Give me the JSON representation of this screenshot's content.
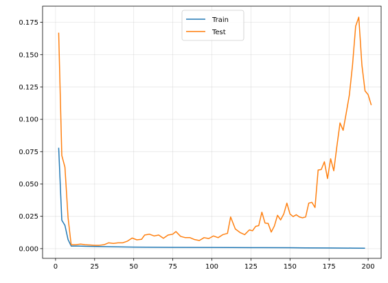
{
  "chart_data": {
    "type": "line",
    "grid": true,
    "legend_placement": "top-center",
    "xlim": [
      -8.3,
      208.3
    ],
    "ylim": [
      -0.0075,
      0.1875
    ],
    "x_ticks": [
      0,
      25,
      50,
      75,
      100,
      125,
      150,
      175,
      200
    ],
    "y_ticks": [
      0.0,
      0.025,
      0.05,
      0.075,
      0.1,
      0.125,
      0.15,
      0.175
    ],
    "x_tick_labels": [
      "0",
      "25",
      "50",
      "75",
      "100",
      "125",
      "150",
      "175",
      "200"
    ],
    "y_tick_labels": [
      "0.000",
      "0.025",
      "0.050",
      "0.075",
      "0.100",
      "0.125",
      "0.150",
      "0.175"
    ],
    "series": [
      {
        "name": "Train",
        "color": "#1f77b4",
        "points": [
          [
            2,
            0.078
          ],
          [
            4,
            0.022
          ],
          [
            6,
            0.018
          ],
          [
            8,
            0.007
          ],
          [
            10,
            0.002
          ],
          [
            15,
            0.002
          ],
          [
            20,
            0.0018
          ],
          [
            30,
            0.0016
          ],
          [
            40,
            0.0014
          ],
          [
            50,
            0.0012
          ],
          [
            75,
            0.001
          ],
          [
            100,
            0.0009
          ],
          [
            125,
            0.0008
          ],
          [
            150,
            0.0007
          ],
          [
            160,
            0.0006
          ],
          [
            175,
            0.0005
          ],
          [
            190,
            0.0004
          ],
          [
            198,
            0.0003
          ]
        ]
      },
      {
        "name": "Test",
        "color": "#ff7f0e",
        "points": [
          [
            2,
            0.167
          ],
          [
            4,
            0.072
          ],
          [
            6,
            0.063
          ],
          [
            8,
            0.024
          ],
          [
            10,
            0.003
          ],
          [
            13,
            0.003
          ],
          [
            16,
            0.0035
          ],
          [
            19,
            0.003
          ],
          [
            22,
            0.0028
          ],
          [
            25,
            0.0026
          ],
          [
            28,
            0.0026
          ],
          [
            31,
            0.003
          ],
          [
            34,
            0.0045
          ],
          [
            37,
            0.004
          ],
          [
            40,
            0.0045
          ],
          [
            43,
            0.0045
          ],
          [
            46,
            0.0058
          ],
          [
            49,
            0.0082
          ],
          [
            52,
            0.0068
          ],
          [
            55,
            0.0072
          ],
          [
            57,
            0.0105
          ],
          [
            60,
            0.0112
          ],
          [
            63,
            0.0098
          ],
          [
            66,
            0.0105
          ],
          [
            69,
            0.008
          ],
          [
            72,
            0.0105
          ],
          [
            75,
            0.0112
          ],
          [
            77,
            0.0132
          ],
          [
            80,
            0.0095
          ],
          [
            83,
            0.0085
          ],
          [
            86,
            0.0085
          ],
          [
            89,
            0.007
          ],
          [
            92,
            0.0063
          ],
          [
            95,
            0.0085
          ],
          [
            98,
            0.0078
          ],
          [
            101,
            0.0098
          ],
          [
            104,
            0.0085
          ],
          [
            107,
            0.0108
          ],
          [
            110,
            0.0118
          ],
          [
            112,
            0.0245
          ],
          [
            115,
            0.0152
          ],
          [
            118,
            0.0125
          ],
          [
            121,
            0.0108
          ],
          [
            124,
            0.0145
          ],
          [
            126,
            0.0138
          ],
          [
            128,
            0.0172
          ],
          [
            130,
            0.0178
          ],
          [
            132,
            0.0282
          ],
          [
            134,
            0.0198
          ],
          [
            136,
            0.0195
          ],
          [
            138,
            0.0128
          ],
          [
            140,
            0.0175
          ],
          [
            142,
            0.0258
          ],
          [
            144,
            0.0222
          ],
          [
            146,
            0.0268
          ],
          [
            148,
            0.0352
          ],
          [
            150,
            0.0268
          ],
          [
            152,
            0.0248
          ],
          [
            154,
            0.0262
          ],
          [
            156,
            0.0245
          ],
          [
            158,
            0.0238
          ],
          [
            160,
            0.0245
          ],
          [
            162,
            0.0352
          ],
          [
            164,
            0.0358
          ],
          [
            166,
            0.0318
          ],
          [
            168,
            0.0608
          ],
          [
            170,
            0.0612
          ],
          [
            172,
            0.0672
          ],
          [
            174,
            0.0542
          ],
          [
            176,
            0.0695
          ],
          [
            178,
            0.0602
          ],
          [
            180,
            0.0792
          ],
          [
            182,
            0.0972
          ],
          [
            184,
            0.0915
          ],
          [
            186,
            0.105
          ],
          [
            188,
            0.119
          ],
          [
            190,
            0.142
          ],
          [
            192,
            0.172
          ],
          [
            194,
            0.179
          ],
          [
            196,
            0.142
          ],
          [
            198,
            0.122
          ],
          [
            200,
            0.119
          ],
          [
            202,
            0.111
          ]
        ]
      }
    ]
  }
}
